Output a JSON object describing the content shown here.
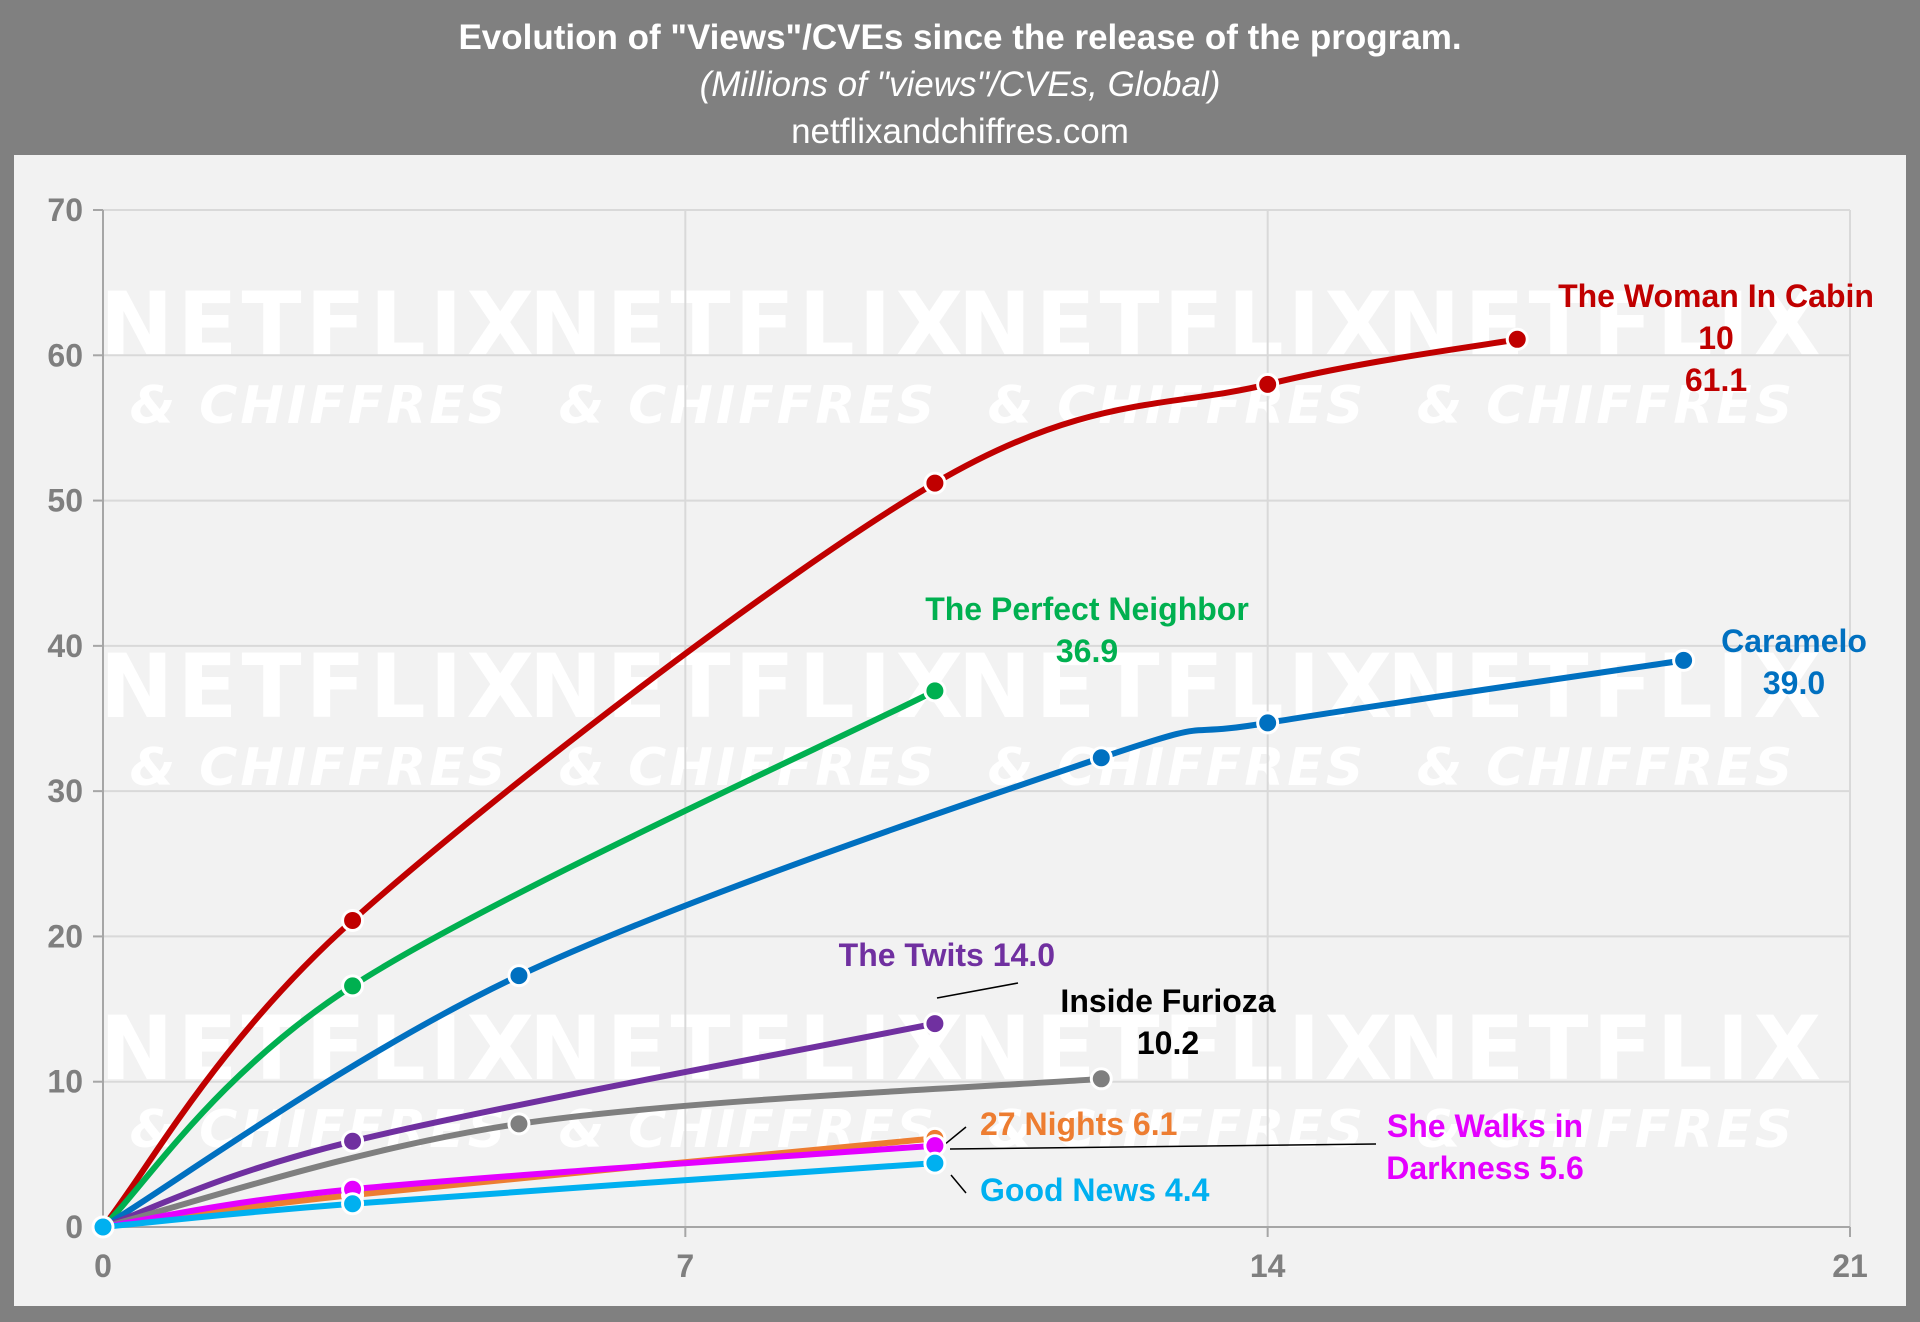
{
  "header": {
    "title": "Evolution of \"Views\"/CVEs since the release of the program.",
    "subtitle": "(Millions of \"views\"/CVEs, Global)",
    "source": "netflixandchiffres.com"
  },
  "watermark": {
    "line1": "NETFLIX",
    "line2": "& CHIFFRES"
  },
  "chart_data": {
    "type": "line",
    "title": "Evolution of \"Views\"/CVEs since the release of the program.",
    "subtitle": "(Millions of \"views\"/CVEs, Global)",
    "xlim": [
      0,
      21
    ],
    "ylim": [
      0,
      70
    ],
    "xticks": [
      0,
      7,
      14,
      21
    ],
    "yticks": [
      0,
      10,
      20,
      30,
      40,
      50,
      60,
      70
    ],
    "grid": true,
    "series": [
      {
        "name": "The Woman In Cabin 10",
        "color": "#c00000",
        "x": [
          0,
          3,
          10,
          14,
          17
        ],
        "y": [
          0,
          21.1,
          51.2,
          58.0,
          61.1
        ],
        "label_lines": [
          "The Woman In Cabin",
          "10",
          "61.1"
        ]
      },
      {
        "name": "The Perfect Neighbor",
        "color": "#00b050",
        "x": [
          0,
          3,
          10
        ],
        "y": [
          0,
          16.6,
          36.9
        ],
        "label_lines": [
          "The Perfect Neighbor",
          "36.9"
        ]
      },
      {
        "name": "Caramelo",
        "color": "#0070c0",
        "x": [
          0,
          5,
          12,
          14,
          19
        ],
        "y": [
          0,
          17.3,
          32.3,
          34.7,
          39.0
        ],
        "label_lines": [
          "Caramelo",
          "39.0"
        ]
      },
      {
        "name": "The Twits",
        "color": "#7030a0",
        "x": [
          0,
          3,
          10
        ],
        "y": [
          0,
          5.9,
          14.0
        ],
        "label_lines": [
          "The Twits 14.0"
        ]
      },
      {
        "name": "Inside Furioza",
        "color": "#7f7f7f",
        "x": [
          0,
          5,
          12
        ],
        "y": [
          0,
          7.1,
          10.2
        ],
        "label_lines": [
          "Inside Furioza",
          "10.2"
        ],
        "label_color": "#000000"
      },
      {
        "name": "27 Nights",
        "color": "#ed7d31",
        "x": [
          0,
          3,
          10
        ],
        "y": [
          0,
          2.2,
          6.1
        ],
        "label_lines": [
          "27 Nights 6.1"
        ]
      },
      {
        "name": "She Walks in Darkness",
        "color": "#e400ff",
        "x": [
          0,
          3,
          10
        ],
        "y": [
          0,
          2.6,
          5.6
        ],
        "label_lines": [
          "She Walks in",
          "Darkness 5.6"
        ]
      },
      {
        "name": "Good News",
        "color": "#00b0f0",
        "x": [
          0,
          3,
          10
        ],
        "y": [
          0,
          1.6,
          4.4
        ],
        "label_lines": [
          "Good News 4.4"
        ]
      }
    ]
  }
}
